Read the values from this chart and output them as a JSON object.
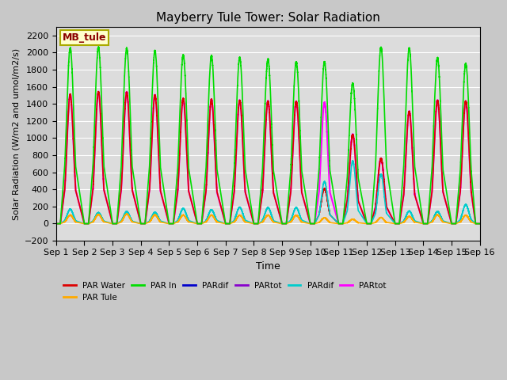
{
  "title": "Mayberry Tule Tower: Solar Radiation",
  "ylabel": "Solar Radiation (W/m2 and umol/m2/s)",
  "xlabel": "Time",
  "ylim": [
    -200,
    2300
  ],
  "xlim": [
    0,
    15
  ],
  "xtick_labels": [
    "Sep 1",
    "Sep 2",
    "Sep 3",
    "Sep 4",
    "Sep 5",
    "Sep 6",
    "Sep 7",
    "Sep 8",
    "Sep 9",
    "Sep 10",
    "Sep 11",
    "Sep 12",
    "Sep 13",
    "Sep 14",
    "Sep 15",
    "Sep 16"
  ],
  "legend_entries": [
    {
      "label": "PAR Water",
      "color": "#dd0000"
    },
    {
      "label": "PAR Tule",
      "color": "#ffaa00"
    },
    {
      "label": "PAR In",
      "color": "#00dd00"
    },
    {
      "label": "PARdif",
      "color": "#0000cc"
    },
    {
      "label": "PARtot",
      "color": "#8800cc"
    },
    {
      "label": "PARdif",
      "color": "#00cccc"
    },
    {
      "label": "PARtot",
      "color": "#ff00ff"
    }
  ],
  "station_label": "MB_tule",
  "background_color": "#dcdcdc",
  "n_days": 15,
  "peaks": {
    "PAR_In": [
      2050,
      2060,
      2050,
      2020,
      1970,
      1960,
      1940,
      1920,
      1890,
      1890,
      1640,
      2060,
      2050,
      1940,
      1870
    ],
    "PAR_Water": [
      1510,
      1540,
      1535,
      1500,
      1460,
      1450,
      1440,
      1430,
      1425,
      405,
      1040,
      760,
      1310,
      1440,
      1430
    ],
    "PAR_Tule": [
      98,
      105,
      110,
      100,
      98,
      98,
      97,
      97,
      96,
      67,
      50,
      70,
      82,
      100,
      97
    ],
    "PAR_dif2": [
      165,
      125,
      140,
      130,
      175,
      160,
      190,
      185,
      185,
      490,
      730,
      575,
      145,
      140,
      220
    ],
    "PAR_tot2": [
      1510,
      1540,
      1535,
      1500,
      1460,
      1450,
      1440,
      1430,
      1425,
      1415,
      1040,
      760,
      1310,
      1440,
      1430
    ],
    "day_width": [
      0.28,
      0.28,
      0.28,
      0.28,
      0.28,
      0.28,
      0.28,
      0.28,
      0.28,
      0.28,
      0.28,
      0.28,
      0.28,
      0.28,
      0.28
    ]
  },
  "yticks": [
    -200,
    0,
    200,
    400,
    600,
    800,
    1000,
    1200,
    1400,
    1600,
    1800,
    2000,
    2200
  ]
}
